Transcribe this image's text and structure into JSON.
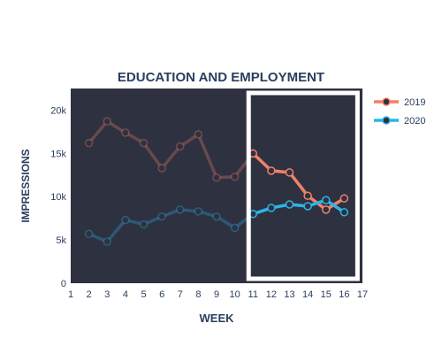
{
  "chart_data": {
    "type": "line",
    "title": "EDUCATION AND EMPLOYMENT",
    "xlabel": "WEEK",
    "ylabel": "IMPRESSIONS",
    "xlim": [
      1,
      17
    ],
    "ylim": [
      0,
      22500
    ],
    "x_ticks": [
      1,
      2,
      3,
      4,
      5,
      6,
      7,
      8,
      9,
      10,
      11,
      12,
      13,
      14,
      15,
      16,
      17
    ],
    "y_ticks": [
      0,
      5000,
      10000,
      15000,
      20000
    ],
    "y_tick_labels": [
      "0",
      "5k",
      "10k",
      "15k",
      "20k"
    ],
    "highlight_range": [
      11,
      16
    ],
    "legend_position": "top-right",
    "plot_background": "#2e3140",
    "series": [
      {
        "name": "2019",
        "color": "#f0806a",
        "x": [
          2,
          3,
          4,
          5,
          6,
          7,
          8,
          9,
          10,
          11,
          12,
          13,
          14,
          15,
          16
        ],
        "values": [
          16200,
          18700,
          17400,
          16200,
          13300,
          15800,
          17200,
          12200,
          12300,
          15000,
          13000,
          12800,
          10100,
          8500,
          9800
        ]
      },
      {
        "name": "2020",
        "color": "#2db3e8",
        "x": [
          2,
          3,
          4,
          5,
          6,
          7,
          8,
          9,
          10,
          11,
          12,
          13,
          14,
          15,
          16
        ],
        "values": [
          5700,
          4800,
          7300,
          6800,
          7700,
          8500,
          8300,
          7700,
          6400,
          8000,
          8700,
          9100,
          8900,
          9600,
          8200
        ]
      }
    ]
  }
}
